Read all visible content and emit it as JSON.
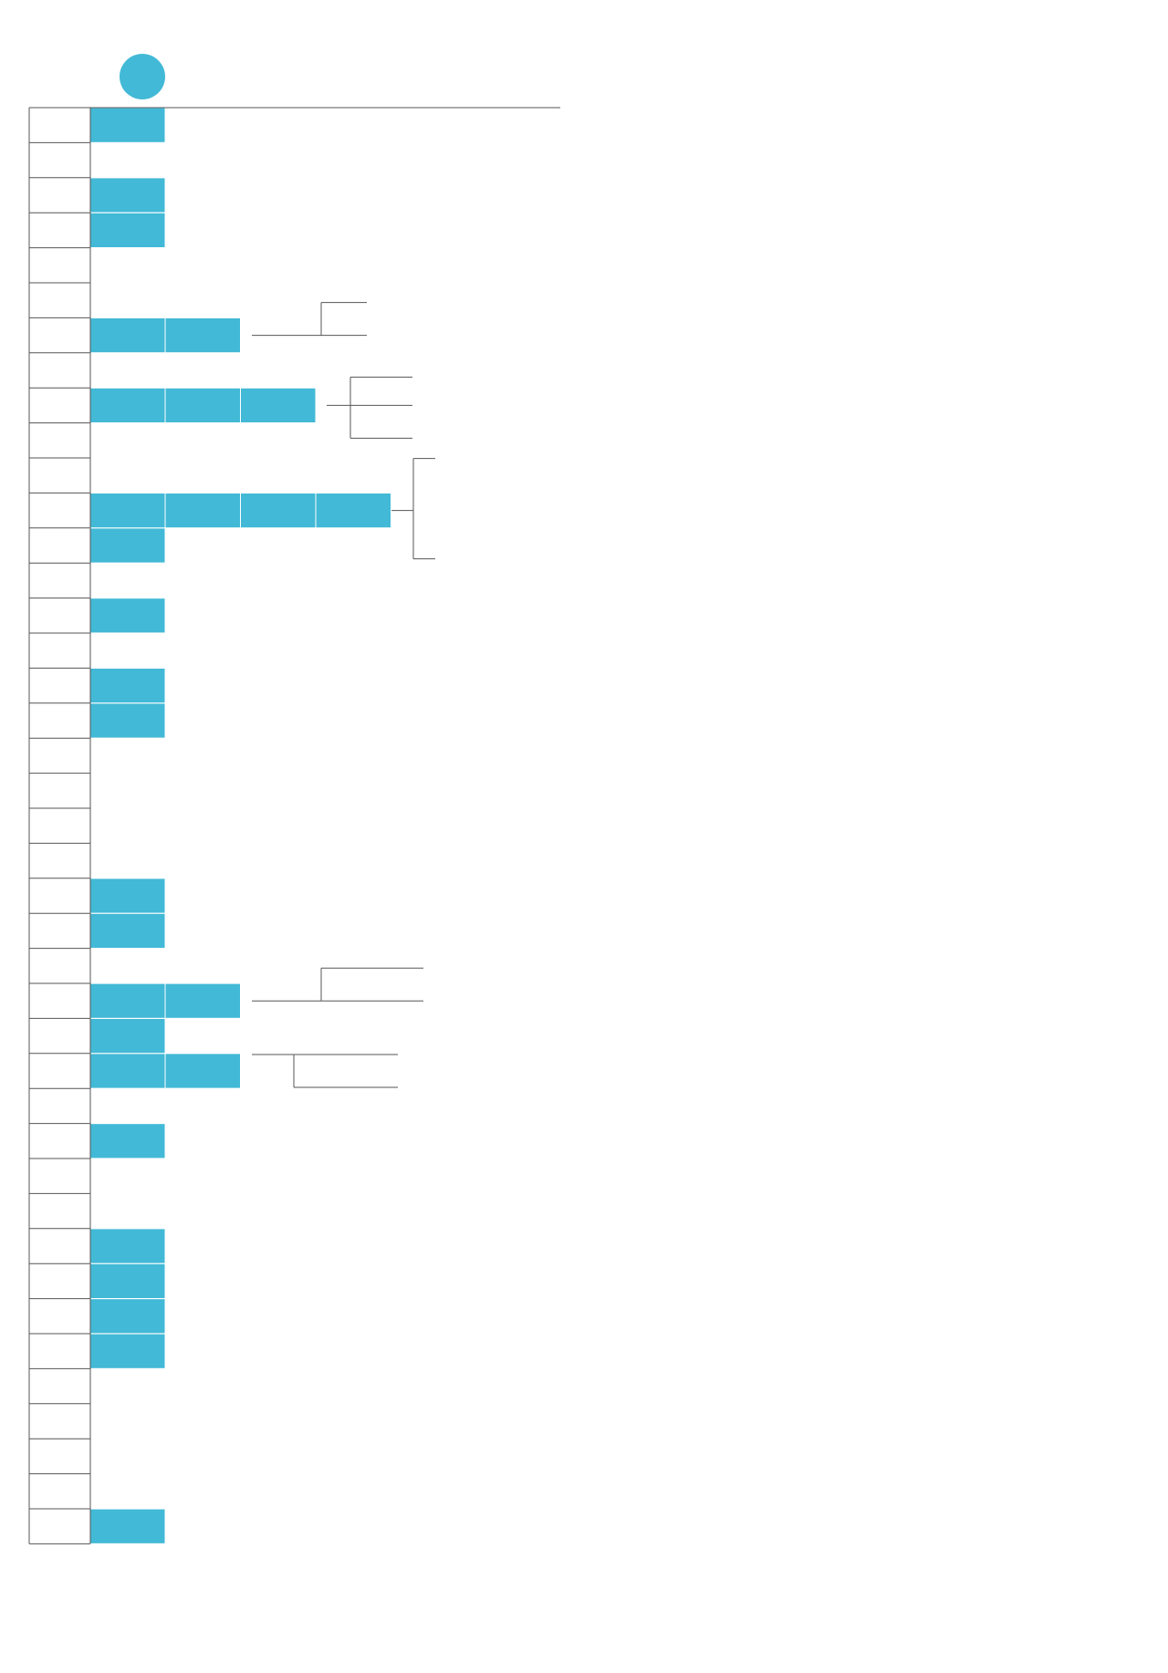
{
  "colors": {
    "accent": "#42b9d6",
    "line": "#555555",
    "background": "#ffffff"
  },
  "legend": {
    "marker": "circle-marker"
  },
  "rows": [
    {
      "filled": 1
    },
    {
      "filled": 0
    },
    {
      "filled": 1
    },
    {
      "filled": 1
    },
    {
      "filled": 0
    },
    {
      "filled": 0
    },
    {
      "filled": 2
    },
    {
      "filled": 0
    },
    {
      "filled": 3
    },
    {
      "filled": 0
    },
    {
      "filled": 0
    },
    {
      "filled": 4
    },
    {
      "filled": 1
    },
    {
      "filled": 0
    },
    {
      "filled": 1
    },
    {
      "filled": 0
    },
    {
      "filled": 1
    },
    {
      "filled": 1
    },
    {
      "filled": 0
    },
    {
      "filled": 0
    },
    {
      "filled": 0
    },
    {
      "filled": 0
    },
    {
      "filled": 1
    },
    {
      "filled": 1
    },
    {
      "filled": 0
    },
    {
      "filled": 2
    },
    {
      "filled": 1
    },
    {
      "filled": 2
    },
    {
      "filled": 0
    },
    {
      "filled": 1
    },
    {
      "filled": 0
    },
    {
      "filled": 0
    },
    {
      "filled": 1
    },
    {
      "filled": 1
    },
    {
      "filled": 1
    },
    {
      "filled": 1
    },
    {
      "filled": 0
    },
    {
      "filled": 0
    },
    {
      "filled": 0
    },
    {
      "filled": 0
    },
    {
      "filled": 1
    }
  ],
  "branches": [
    {
      "row": 6,
      "ends": 2,
      "side": "up"
    },
    {
      "row": 8,
      "ends": 3,
      "side": "both"
    },
    {
      "row": 11,
      "ends": 2,
      "side": "both"
    },
    {
      "row": 25,
      "ends": 2,
      "side": "up"
    },
    {
      "row": 27,
      "ends": 2,
      "side": "down"
    }
  ]
}
